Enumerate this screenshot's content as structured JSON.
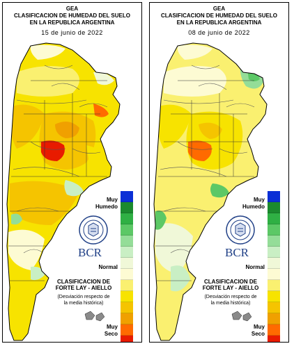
{
  "panels": [
    {
      "org": "GEA",
      "title_line1": "CLASIFICACION DE HUMEDAD DEL SUELO",
      "title_line2": "EN LA REPUBLICA ARGENTINA",
      "date": "15 de junio de 2022",
      "variant": "dry"
    },
    {
      "org": "GEA",
      "title_line1": "CLASIFICACION DE HUMEDAD DEL SUELO",
      "title_line2": "EN LA REPUBLICA ARGENTINA",
      "date": "08 de junio de 2022",
      "variant": "moist"
    }
  ],
  "legend": {
    "label_wet_line1": "Muy",
    "label_wet_line2": "Humedo",
    "label_normal": "Normal",
    "label_dry_line1": "Muy",
    "label_dry_line2": "Seco",
    "colors": [
      "#0b2fd6",
      "#1b8a2e",
      "#2fb044",
      "#5cc866",
      "#94dd98",
      "#c9efc4",
      "#f0f8d8",
      "#fdfbd3",
      "#faf070",
      "#f7e300",
      "#f5c400",
      "#f0a000",
      "#ff6a00",
      "#e81b00"
    ]
  },
  "logo_text": "BCR",
  "classification_line1": "CLASIFICACION DE",
  "classification_line2": "FORTE LAY - AIELLO",
  "deviation_line1": "(Desviación respecto de",
  "deviation_line2": "la media histórica)"
}
